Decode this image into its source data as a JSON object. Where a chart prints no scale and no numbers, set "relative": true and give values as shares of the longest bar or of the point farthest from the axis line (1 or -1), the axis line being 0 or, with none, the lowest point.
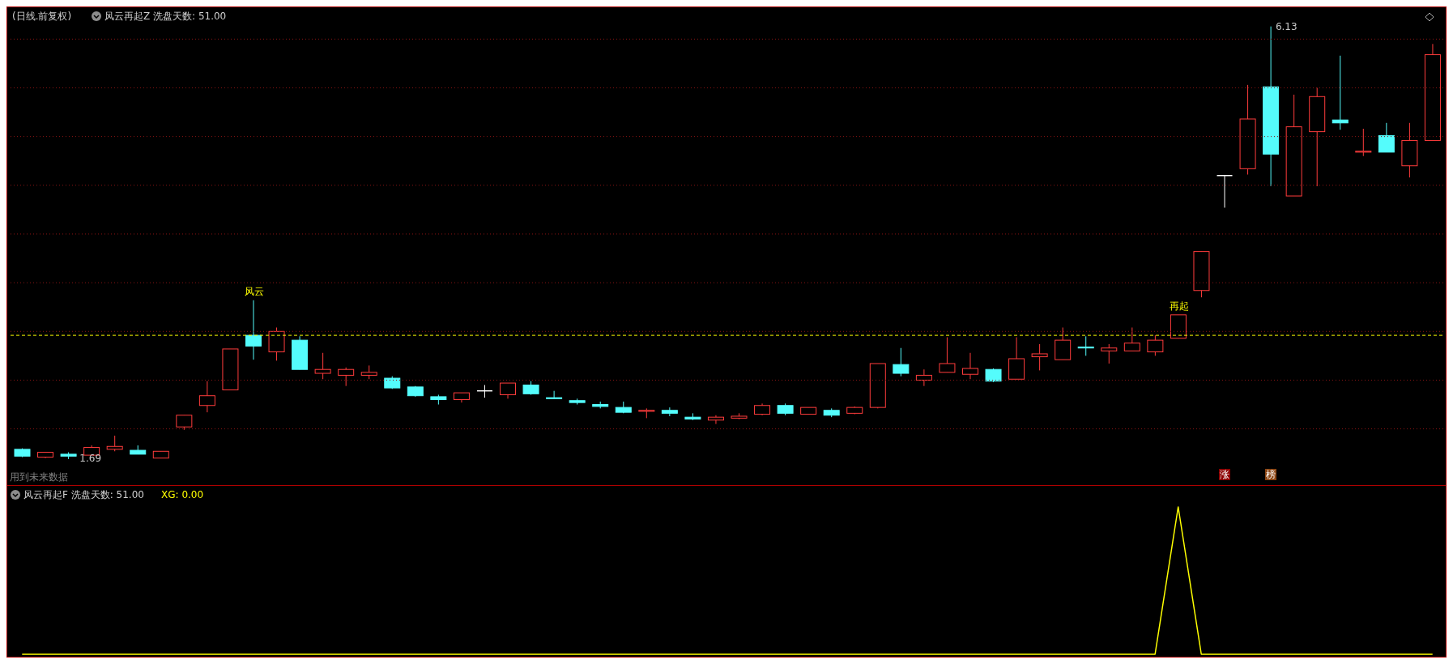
{
  "chart_data": [
    {
      "type": "candlestick",
      "title": "(日线.前复权)",
      "subtitle": "风云再起Z  洗盘天数: 51.00",
      "categories": [
        null,
        null,
        null,
        null,
        null,
        null,
        null,
        null,
        null,
        null,
        null,
        null,
        null,
        null,
        null,
        null,
        null,
        null,
        null,
        null,
        null,
        null,
        null,
        null,
        null,
        null,
        null,
        null,
        null,
        null,
        null,
        null,
        null,
        null,
        null,
        null,
        null,
        null,
        null,
        null,
        null,
        null,
        null,
        null,
        null,
        null,
        null,
        null,
        null,
        null,
        null,
        null,
        null,
        null,
        null,
        null,
        null,
        null,
        null,
        null,
        null,
        null
      ],
      "ohlc": [
        [
          1.79,
          1.8,
          1.71,
          1.72
        ],
        [
          1.71,
          1.76,
          1.7,
          1.76
        ],
        [
          1.74,
          1.76,
          1.69,
          1.72
        ],
        [
          1.73,
          1.83,
          1.73,
          1.81
        ],
        [
          1.79,
          1.93,
          1.77,
          1.82
        ],
        [
          1.78,
          1.83,
          1.74,
          1.74
        ],
        [
          1.7,
          1.77,
          1.7,
          1.77
        ],
        [
          2.02,
          2.14,
          1.99,
          2.14
        ],
        [
          2.24,
          2.49,
          2.17,
          2.34
        ],
        [
          2.4,
          2.82,
          2.4,
          2.82
        ],
        [
          2.96,
          3.32,
          2.71,
          2.85
        ],
        [
          2.79,
          3.04,
          2.7,
          3.0
        ],
        [
          2.91,
          2.95,
          2.61,
          2.61
        ],
        [
          2.57,
          2.78,
          2.51,
          2.61
        ],
        [
          2.55,
          2.63,
          2.44,
          2.61
        ],
        [
          2.55,
          2.65,
          2.51,
          2.58
        ],
        [
          2.52,
          2.54,
          2.41,
          2.42
        ],
        [
          2.43,
          2.44,
          2.33,
          2.34
        ],
        [
          2.33,
          2.35,
          2.25,
          2.3
        ],
        [
          2.3,
          2.37,
          2.27,
          2.37
        ],
        [
          2.39,
          2.45,
          2.32,
          2.39
        ],
        [
          2.35,
          2.47,
          2.31,
          2.47
        ],
        [
          2.45,
          2.49,
          2.35,
          2.36
        ],
        [
          2.32,
          2.39,
          2.31,
          2.31
        ],
        [
          2.29,
          2.31,
          2.25,
          2.27
        ],
        [
          2.25,
          2.28,
          2.21,
          2.23
        ],
        [
          2.22,
          2.28,
          2.16,
          2.17
        ],
        [
          2.18,
          2.21,
          2.11,
          2.19
        ],
        [
          2.19,
          2.22,
          2.13,
          2.16
        ],
        [
          2.12,
          2.16,
          2.09,
          2.1
        ],
        [
          2.09,
          2.14,
          2.05,
          2.12
        ],
        [
          2.11,
          2.16,
          2.1,
          2.13
        ],
        [
          2.15,
          2.26,
          2.14,
          2.24
        ],
        [
          2.24,
          2.26,
          2.14,
          2.16
        ],
        [
          2.15,
          2.22,
          2.15,
          2.22
        ],
        [
          2.19,
          2.21,
          2.12,
          2.14
        ],
        [
          2.16,
          2.23,
          2.15,
          2.22
        ],
        [
          2.22,
          2.67,
          2.21,
          2.67
        ],
        [
          2.66,
          2.83,
          2.54,
          2.57
        ],
        [
          2.5,
          2.61,
          2.44,
          2.55
        ],
        [
          2.58,
          2.94,
          2.58,
          2.67
        ],
        [
          2.56,
          2.78,
          2.51,
          2.62
        ],
        [
          2.61,
          2.62,
          2.48,
          2.49
        ],
        [
          2.51,
          2.94,
          2.51,
          2.72
        ],
        [
          2.74,
          2.87,
          2.6,
          2.77
        ],
        [
          2.71,
          3.04,
          2.71,
          2.91
        ],
        [
          2.84,
          2.95,
          2.75,
          2.83
        ],
        [
          2.8,
          2.87,
          2.67,
          2.83
        ],
        [
          2.8,
          3.04,
          2.8,
          2.88
        ],
        [
          2.79,
          2.96,
          2.75,
          2.91
        ],
        [
          2.93,
          3.17,
          2.93,
          3.17
        ],
        [
          3.42,
          3.82,
          3.35,
          3.82
        ],
        [
          4.6,
          4.6,
          4.27,
          4.6
        ],
        [
          4.67,
          5.53,
          4.61,
          5.18
        ],
        [
          5.51,
          6.13,
          4.49,
          4.82
        ],
        [
          4.39,
          5.43,
          4.39,
          5.1
        ],
        [
          5.05,
          5.5,
          4.49,
          5.41
        ],
        [
          5.17,
          5.83,
          5.07,
          5.14
        ],
        [
          4.84,
          5.08,
          4.8,
          4.85
        ],
        [
          5.01,
          5.14,
          4.84,
          4.84
        ],
        [
          4.7,
          5.14,
          4.58,
          4.96
        ],
        [
          4.96,
          5.95,
          4.96,
          5.84
        ]
      ],
      "colors": [
        "#54fcfc",
        "#ff3c3c",
        "#54fcfc",
        "#ff3c3c",
        "#ff3c3c",
        "#54fcfc",
        "#ff3c3c",
        "#ff3c3c",
        "#ff3c3c",
        "#ff3c3c",
        "#54fcfc",
        "#ff3c3c",
        "#54fcfc",
        "#ff3c3c",
        "#ff3c3c",
        "#ff3c3c",
        "#54fcfc",
        "#54fcfc",
        "#54fcfc",
        "#ff3c3c",
        "#ffffff",
        "#ff3c3c",
        "#54fcfc",
        "#54fcfc",
        "#54fcfc",
        "#54fcfc",
        "#54fcfc",
        "#ff3c3c",
        "#54fcfc",
        "#54fcfc",
        "#ff3c3c",
        "#ff3c3c",
        "#ff3c3c",
        "#54fcfc",
        "#ff3c3c",
        "#54fcfc",
        "#ff3c3c",
        "#ff3c3c",
        "#54fcfc",
        "#ff3c3c",
        "#ff3c3c",
        "#ff3c3c",
        "#54fcfc",
        "#ff3c3c",
        "#ff3c3c",
        "#ff3c3c",
        "#54fcfc",
        "#ff3c3c",
        "#ff3c3c",
        "#ff3c3c",
        "#ff3c3c",
        "#ff3c3c",
        "#ffffff",
        "#ff3c3c",
        "#54fcfc",
        "#ff3c3c",
        "#ff3c3c",
        "#54fcfc",
        "#ff3c3c",
        "#54fcfc",
        "#ff3c3c",
        "#ff3c3c"
      ],
      "ylim": [
        1.44,
        6.31
      ],
      "yticks": [
        {
          "value": 2.0,
          "label": null
        },
        {
          "value": 2.5,
          "label": null
        },
        {
          "value": 3.0,
          "label": null
        },
        {
          "value": 3.5,
          "label": null
        },
        {
          "value": 4.0,
          "label": null
        },
        {
          "value": 4.5,
          "label": null
        },
        {
          "value": 5.0,
          "label": null
        },
        {
          "value": 5.5,
          "label": null
        },
        {
          "value": 6.0,
          "label": null
        }
      ],
      "grid": "y",
      "tick_labels": false,
      "ref_lines": [
        {
          "axis": "y",
          "value": 2.96,
          "color": "#ffff00",
          "line_style": "dashed"
        }
      ],
      "annotations": [
        "风云",
        "再起",
        "6.13",
        "1.69",
        "用到未来数据",
        "涨",
        "榜"
      ]
    },
    {
      "type": "line",
      "title": "风云再起F  洗盘天数: 51.00",
      "subtitle": "XG: 0.00",
      "relative": true,
      "tick_labels": false,
      "categories": [
        null,
        null,
        null,
        null,
        null,
        null,
        null,
        null,
        null,
        null,
        null,
        null,
        null,
        null,
        null,
        null,
        null,
        null,
        null,
        null,
        null,
        null,
        null,
        null,
        null,
        null,
        null,
        null,
        null,
        null,
        null,
        null,
        null,
        null,
        null,
        null,
        null,
        null,
        null,
        null,
        null,
        null,
        null,
        null,
        null,
        null,
        null,
        null,
        null,
        null,
        null,
        null,
        null,
        null,
        null,
        null,
        null,
        null,
        null,
        null,
        null,
        null
      ],
      "series": [
        {
          "color": "#ffff00",
          "values": [
            0,
            0,
            0,
            0,
            0,
            0,
            0,
            0,
            0,
            0,
            0,
            0,
            0,
            0,
            0,
            0,
            0,
            0,
            0,
            0,
            0,
            0,
            0,
            0,
            0,
            0,
            0,
            0,
            0,
            0,
            0,
            0,
            0,
            0,
            0,
            0,
            0,
            0,
            0,
            0,
            0,
            0,
            0,
            0,
            0,
            0,
            0,
            0,
            0,
            0,
            1,
            0,
            0,
            0,
            0,
            0,
            0,
            0,
            0,
            0,
            0,
            0
          ]
        }
      ]
    }
  ]
}
